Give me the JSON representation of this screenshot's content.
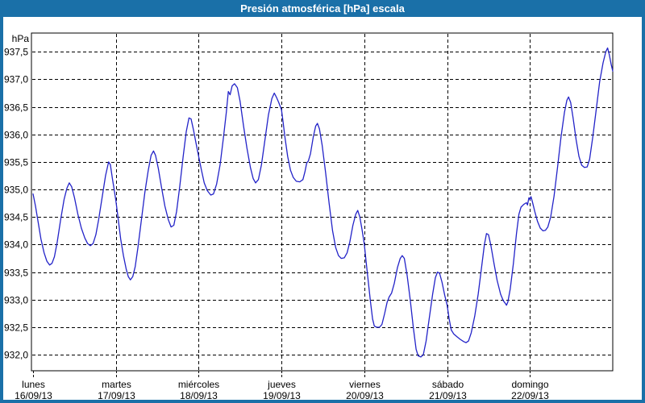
{
  "window": {
    "title": "Presión atmosférica [hPa] escala"
  },
  "colors": {
    "accent": "#1A70A8",
    "titlebar_text": "#FFFFFF",
    "plot_background": "#FFFFFF",
    "plot_border": "#000000",
    "gridline": "#000000",
    "tick_text": "#000000",
    "series_line": "#2323C8"
  },
  "chart_data": {
    "type": "line",
    "title": "Presión atmosférica [hPa] escala",
    "unit_label": "hPa",
    "ylabel": "hPa",
    "xlabel": "",
    "grid": "dashed",
    "legend": "none",
    "ylim": [
      931.71,
      937.84
    ],
    "y_tick_values": [
      937.5,
      937.0,
      936.5,
      936.0,
      935.5,
      935.0,
      934.5,
      934.0,
      933.5,
      933.0,
      932.5,
      932.0
    ],
    "y_tick_labels": [
      "937,5",
      "937,0",
      "936,5",
      "936,0",
      "935,5",
      "935,0",
      "934,5",
      "934,0",
      "933,5",
      "933,0",
      "932,5",
      "932,0"
    ],
    "x_range_hours": [
      0,
      168
    ],
    "x_days": [
      {
        "name": "lunes",
        "date": "16/09/13"
      },
      {
        "name": "martes",
        "date": "17/09/13"
      },
      {
        "name": "miércoles",
        "date": "18/09/13"
      },
      {
        "name": "jueves",
        "date": "19/09/13"
      },
      {
        "name": "viernes",
        "date": "20/09/13"
      },
      {
        "name": "sábado",
        "date": "21/09/13"
      },
      {
        "name": "domingo",
        "date": "22/09/13"
      }
    ],
    "series": [
      {
        "name": "Presión atmosférica",
        "color": "#2323C8",
        "points": [
          [
            0,
            934.92
          ],
          [
            0.7,
            934.7
          ],
          [
            1.5,
            934.4
          ],
          [
            2.3,
            934.1
          ],
          [
            3.2,
            933.85
          ],
          [
            4,
            933.7
          ],
          [
            4.8,
            933.63
          ],
          [
            5.5,
            933.66
          ],
          [
            6.2,
            933.78
          ],
          [
            7,
            934.05
          ],
          [
            8,
            934.45
          ],
          [
            9,
            934.82
          ],
          [
            9.8,
            935.02
          ],
          [
            10.5,
            935.12
          ],
          [
            11.2,
            935.05
          ],
          [
            12,
            934.85
          ],
          [
            13,
            934.55
          ],
          [
            14,
            934.3
          ],
          [
            15,
            934.12
          ],
          [
            15.8,
            934.02
          ],
          [
            16.6,
            933.98
          ],
          [
            17.4,
            934.02
          ],
          [
            18.2,
            934.18
          ],
          [
            19,
            934.45
          ],
          [
            20,
            934.85
          ],
          [
            21,
            935.25
          ],
          [
            21.9,
            935.5
          ],
          [
            22.4,
            935.45
          ],
          [
            23,
            935.2
          ],
          [
            23.5,
            935.0
          ],
          [
            24,
            934.8
          ],
          [
            24.6,
            934.5
          ],
          [
            25.4,
            934.1
          ],
          [
            26.2,
            933.8
          ],
          [
            27,
            933.55
          ],
          [
            27.6,
            933.42
          ],
          [
            28.2,
            933.36
          ],
          [
            28.9,
            933.42
          ],
          [
            29.6,
            933.6
          ],
          [
            30.4,
            933.95
          ],
          [
            31.4,
            934.45
          ],
          [
            32.4,
            934.95
          ],
          [
            33.4,
            935.35
          ],
          [
            34.2,
            935.62
          ],
          [
            34.9,
            935.7
          ],
          [
            35.5,
            935.62
          ],
          [
            36.3,
            935.38
          ],
          [
            37.2,
            935.05
          ],
          [
            38.2,
            934.7
          ],
          [
            39.2,
            934.45
          ],
          [
            40,
            934.32
          ],
          [
            40.8,
            934.35
          ],
          [
            41.6,
            934.6
          ],
          [
            42.5,
            935.05
          ],
          [
            43.5,
            935.6
          ],
          [
            44.4,
            936.05
          ],
          [
            45.2,
            936.3
          ],
          [
            45.8,
            936.28
          ],
          [
            46.5,
            936.08
          ],
          [
            47.2,
            935.85
          ],
          [
            48,
            935.6
          ],
          [
            48.8,
            935.35
          ],
          [
            49.6,
            935.12
          ],
          [
            50.5,
            934.98
          ],
          [
            51.5,
            934.9
          ],
          [
            52.3,
            934.92
          ],
          [
            53.2,
            935.1
          ],
          [
            54.2,
            935.45
          ],
          [
            55.2,
            935.95
          ],
          [
            56,
            936.4
          ],
          [
            56.6,
            936.78
          ],
          [
            57.1,
            936.72
          ],
          [
            57.7,
            936.88
          ],
          [
            58.4,
            936.92
          ],
          [
            59.2,
            936.85
          ],
          [
            60,
            936.6
          ],
          [
            61,
            936.15
          ],
          [
            62,
            935.75
          ],
          [
            63,
            935.4
          ],
          [
            63.8,
            935.2
          ],
          [
            64.5,
            935.12
          ],
          [
            65.3,
            935.18
          ],
          [
            66.2,
            935.45
          ],
          [
            67.2,
            935.9
          ],
          [
            68.2,
            936.35
          ],
          [
            69.2,
            936.65
          ],
          [
            69.9,
            936.75
          ],
          [
            70.5,
            936.68
          ],
          [
            71.2,
            936.58
          ],
          [
            72,
            936.45
          ],
          [
            72.4,
            936.25
          ],
          [
            73,
            935.95
          ],
          [
            73.8,
            935.6
          ],
          [
            74.6,
            935.35
          ],
          [
            75.4,
            935.22
          ],
          [
            76.3,
            935.15
          ],
          [
            77.3,
            935.14
          ],
          [
            78.2,
            935.18
          ],
          [
            78.8,
            935.32
          ],
          [
            79.3,
            935.48
          ],
          [
            79.8,
            935.52
          ],
          [
            80.4,
            935.65
          ],
          [
            81.2,
            935.95
          ],
          [
            81.9,
            936.15
          ],
          [
            82.4,
            936.2
          ],
          [
            83,
            936.1
          ],
          [
            83.8,
            935.8
          ],
          [
            84.8,
            935.3
          ],
          [
            85.8,
            934.75
          ],
          [
            86.8,
            934.25
          ],
          [
            87.7,
            933.95
          ],
          [
            88.5,
            933.8
          ],
          [
            89.3,
            933.75
          ],
          [
            90.2,
            933.76
          ],
          [
            91,
            933.85
          ],
          [
            91.8,
            934.05
          ],
          [
            92.7,
            934.35
          ],
          [
            93.5,
            934.55
          ],
          [
            94.1,
            934.62
          ],
          [
            94.7,
            934.5
          ],
          [
            95.4,
            934.25
          ],
          [
            96,
            934.0
          ],
          [
            96.6,
            933.65
          ],
          [
            97.2,
            933.3
          ],
          [
            97.8,
            932.95
          ],
          [
            98.4,
            932.65
          ],
          [
            98.9,
            932.52
          ],
          [
            99.6,
            932.5
          ],
          [
            100.4,
            932.5
          ],
          [
            101.1,
            932.55
          ],
          [
            101.9,
            932.75
          ],
          [
            102.6,
            932.95
          ],
          [
            103.2,
            933.05
          ],
          [
            103.9,
            933.12
          ],
          [
            104.7,
            933.3
          ],
          [
            105.6,
            933.58
          ],
          [
            106.4,
            933.75
          ],
          [
            107,
            933.8
          ],
          [
            107.6,
            933.75
          ],
          [
            108.4,
            933.45
          ],
          [
            109.3,
            933.0
          ],
          [
            110.2,
            932.5
          ],
          [
            111,
            932.1
          ],
          [
            111.6,
            931.98
          ],
          [
            112.4,
            931.96
          ],
          [
            113.1,
            932.0
          ],
          [
            113.9,
            932.25
          ],
          [
            114.8,
            932.65
          ],
          [
            115.8,
            933.1
          ],
          [
            116.6,
            933.4
          ],
          [
            117.2,
            933.5
          ],
          [
            117.8,
            933.48
          ],
          [
            118.5,
            933.32
          ],
          [
            119.3,
            933.08
          ],
          [
            120,
            932.9
          ],
          [
            120.6,
            932.65
          ],
          [
            121.2,
            932.45
          ],
          [
            121.9,
            932.38
          ],
          [
            122.8,
            932.33
          ],
          [
            123.8,
            932.28
          ],
          [
            124.8,
            932.24
          ],
          [
            125.5,
            932.22
          ],
          [
            126.2,
            932.25
          ],
          [
            127,
            932.4
          ],
          [
            128,
            932.7
          ],
          [
            129,
            933.1
          ],
          [
            130,
            933.6
          ],
          [
            130.8,
            934.0
          ],
          [
            131.4,
            934.2
          ],
          [
            132,
            934.18
          ],
          [
            132.7,
            933.98
          ],
          [
            133.6,
            933.65
          ],
          [
            134.5,
            933.35
          ],
          [
            135.5,
            933.1
          ],
          [
            136.3,
            932.98
          ],
          [
            136.9,
            932.93
          ],
          [
            137.2,
            932.9
          ],
          [
            137.6,
            932.96
          ],
          [
            138.3,
            933.2
          ],
          [
            139.2,
            933.65
          ],
          [
            140.1,
            934.2
          ],
          [
            140.8,
            934.55
          ],
          [
            141.4,
            934.68
          ],
          [
            142.2,
            934.73
          ],
          [
            143,
            934.76
          ],
          [
            143.3,
            934.72
          ],
          [
            143.7,
            934.85
          ],
          [
            144,
            934.82
          ],
          [
            144.3,
            934.87
          ],
          [
            144.7,
            934.78
          ],
          [
            145.4,
            934.6
          ],
          [
            146.2,
            934.42
          ],
          [
            147,
            934.3
          ],
          [
            147.8,
            934.25
          ],
          [
            148.5,
            934.26
          ],
          [
            149.2,
            934.32
          ],
          [
            150,
            934.5
          ],
          [
            151,
            934.88
          ],
          [
            152,
            935.4
          ],
          [
            153,
            935.95
          ],
          [
            154,
            936.4
          ],
          [
            154.7,
            936.62
          ],
          [
            155.2,
            936.68
          ],
          [
            155.8,
            936.58
          ],
          [
            156.5,
            936.3
          ],
          [
            157.4,
            935.9
          ],
          [
            158.2,
            935.6
          ],
          [
            159,
            935.44
          ],
          [
            159.8,
            935.4
          ],
          [
            160.6,
            935.41
          ],
          [
            161.3,
            935.55
          ],
          [
            162.2,
            935.95
          ],
          [
            163.2,
            936.45
          ],
          [
            164.2,
            936.95
          ],
          [
            165.2,
            937.3
          ],
          [
            166,
            937.5
          ],
          [
            166.5,
            937.57
          ],
          [
            167,
            937.45
          ],
          [
            167.5,
            937.28
          ],
          [
            168,
            937.15
          ]
        ]
      }
    ]
  }
}
